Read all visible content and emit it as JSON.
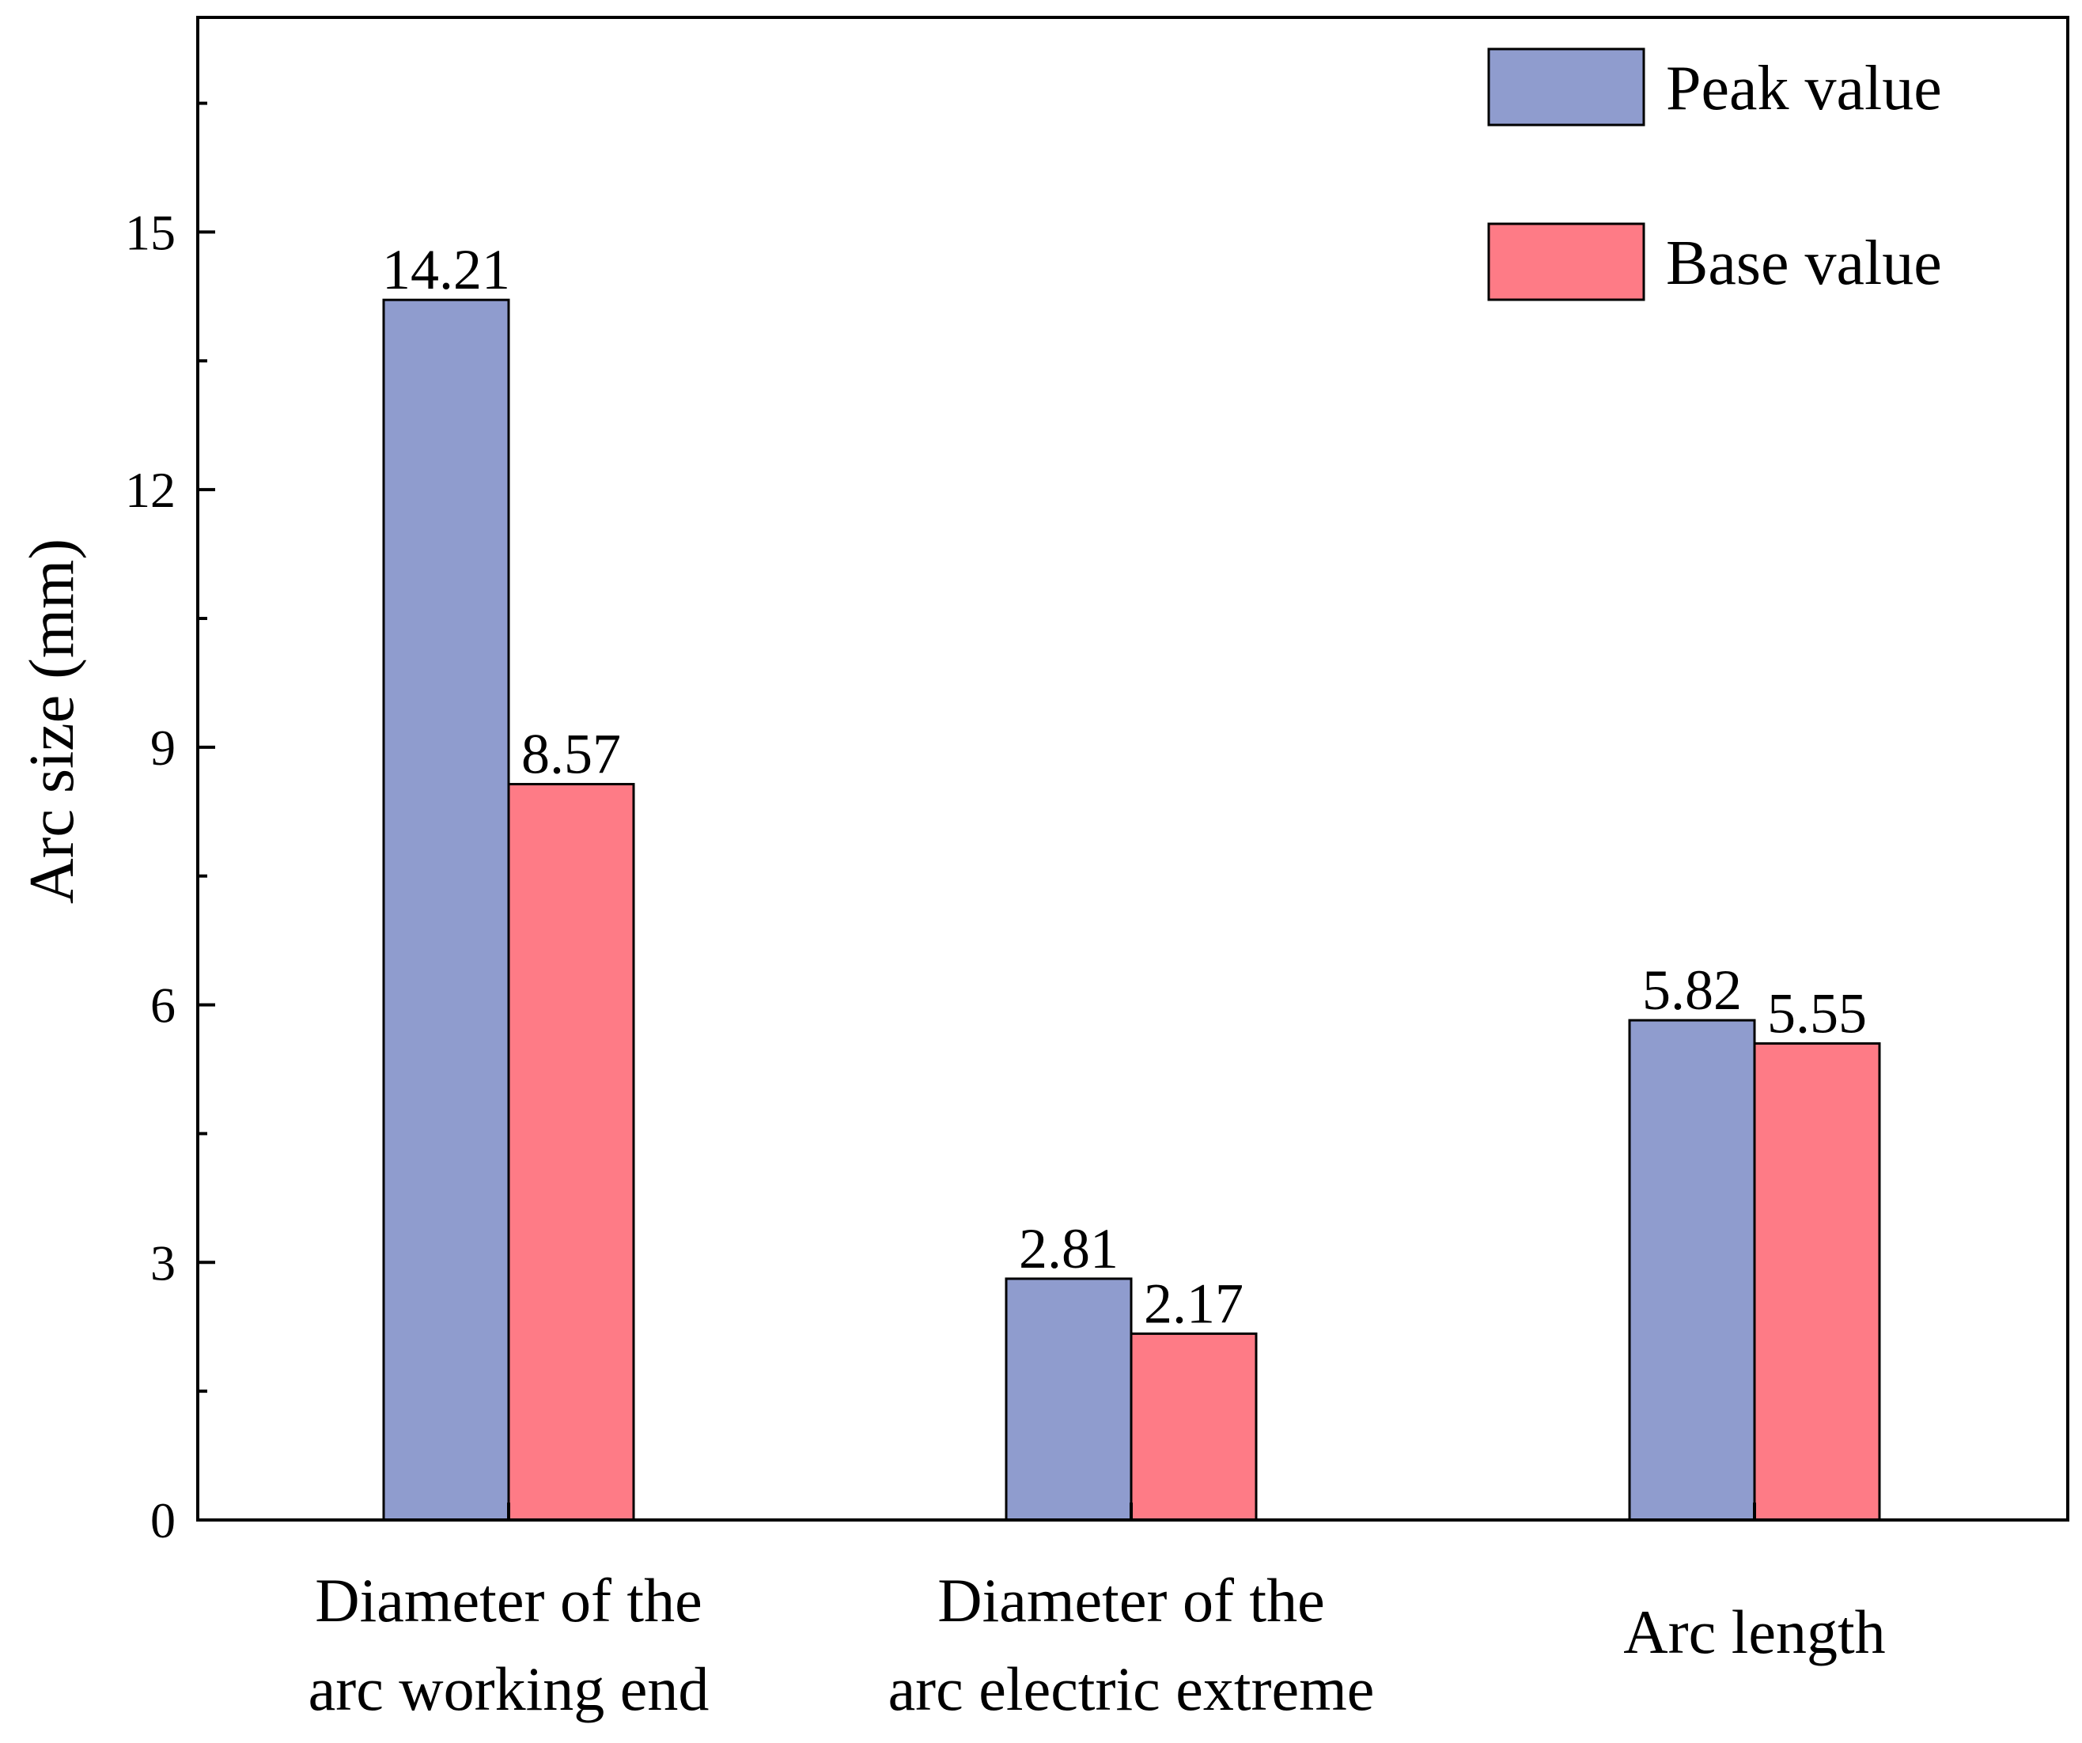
{
  "chart_data": {
    "type": "bar",
    "title": "",
    "xlabel": "",
    "ylabel": "Arc size (mm)",
    "ylim": [
      0,
      17.5
    ],
    "yticks": [
      0,
      3,
      6,
      9,
      12,
      15
    ],
    "categories": [
      [
        "Diameter of the",
        "arc working end"
      ],
      [
        "Diameter of the",
        "arc electric extreme"
      ],
      [
        "Arc length"
      ]
    ],
    "series": [
      {
        "name": "Peak value",
        "color": "#8f9cce",
        "values": [
          14.21,
          2.81,
          5.82
        ],
        "labels": [
          "14.21",
          "2.81",
          "5.82"
        ]
      },
      {
        "name": "Base value",
        "color": "#fe7b86",
        "values": [
          8.57,
          2.17,
          5.55
        ],
        "labels": [
          "8.57",
          "2.17",
          "5.55"
        ]
      }
    ],
    "legend_position": "top-right",
    "grid": false
  }
}
